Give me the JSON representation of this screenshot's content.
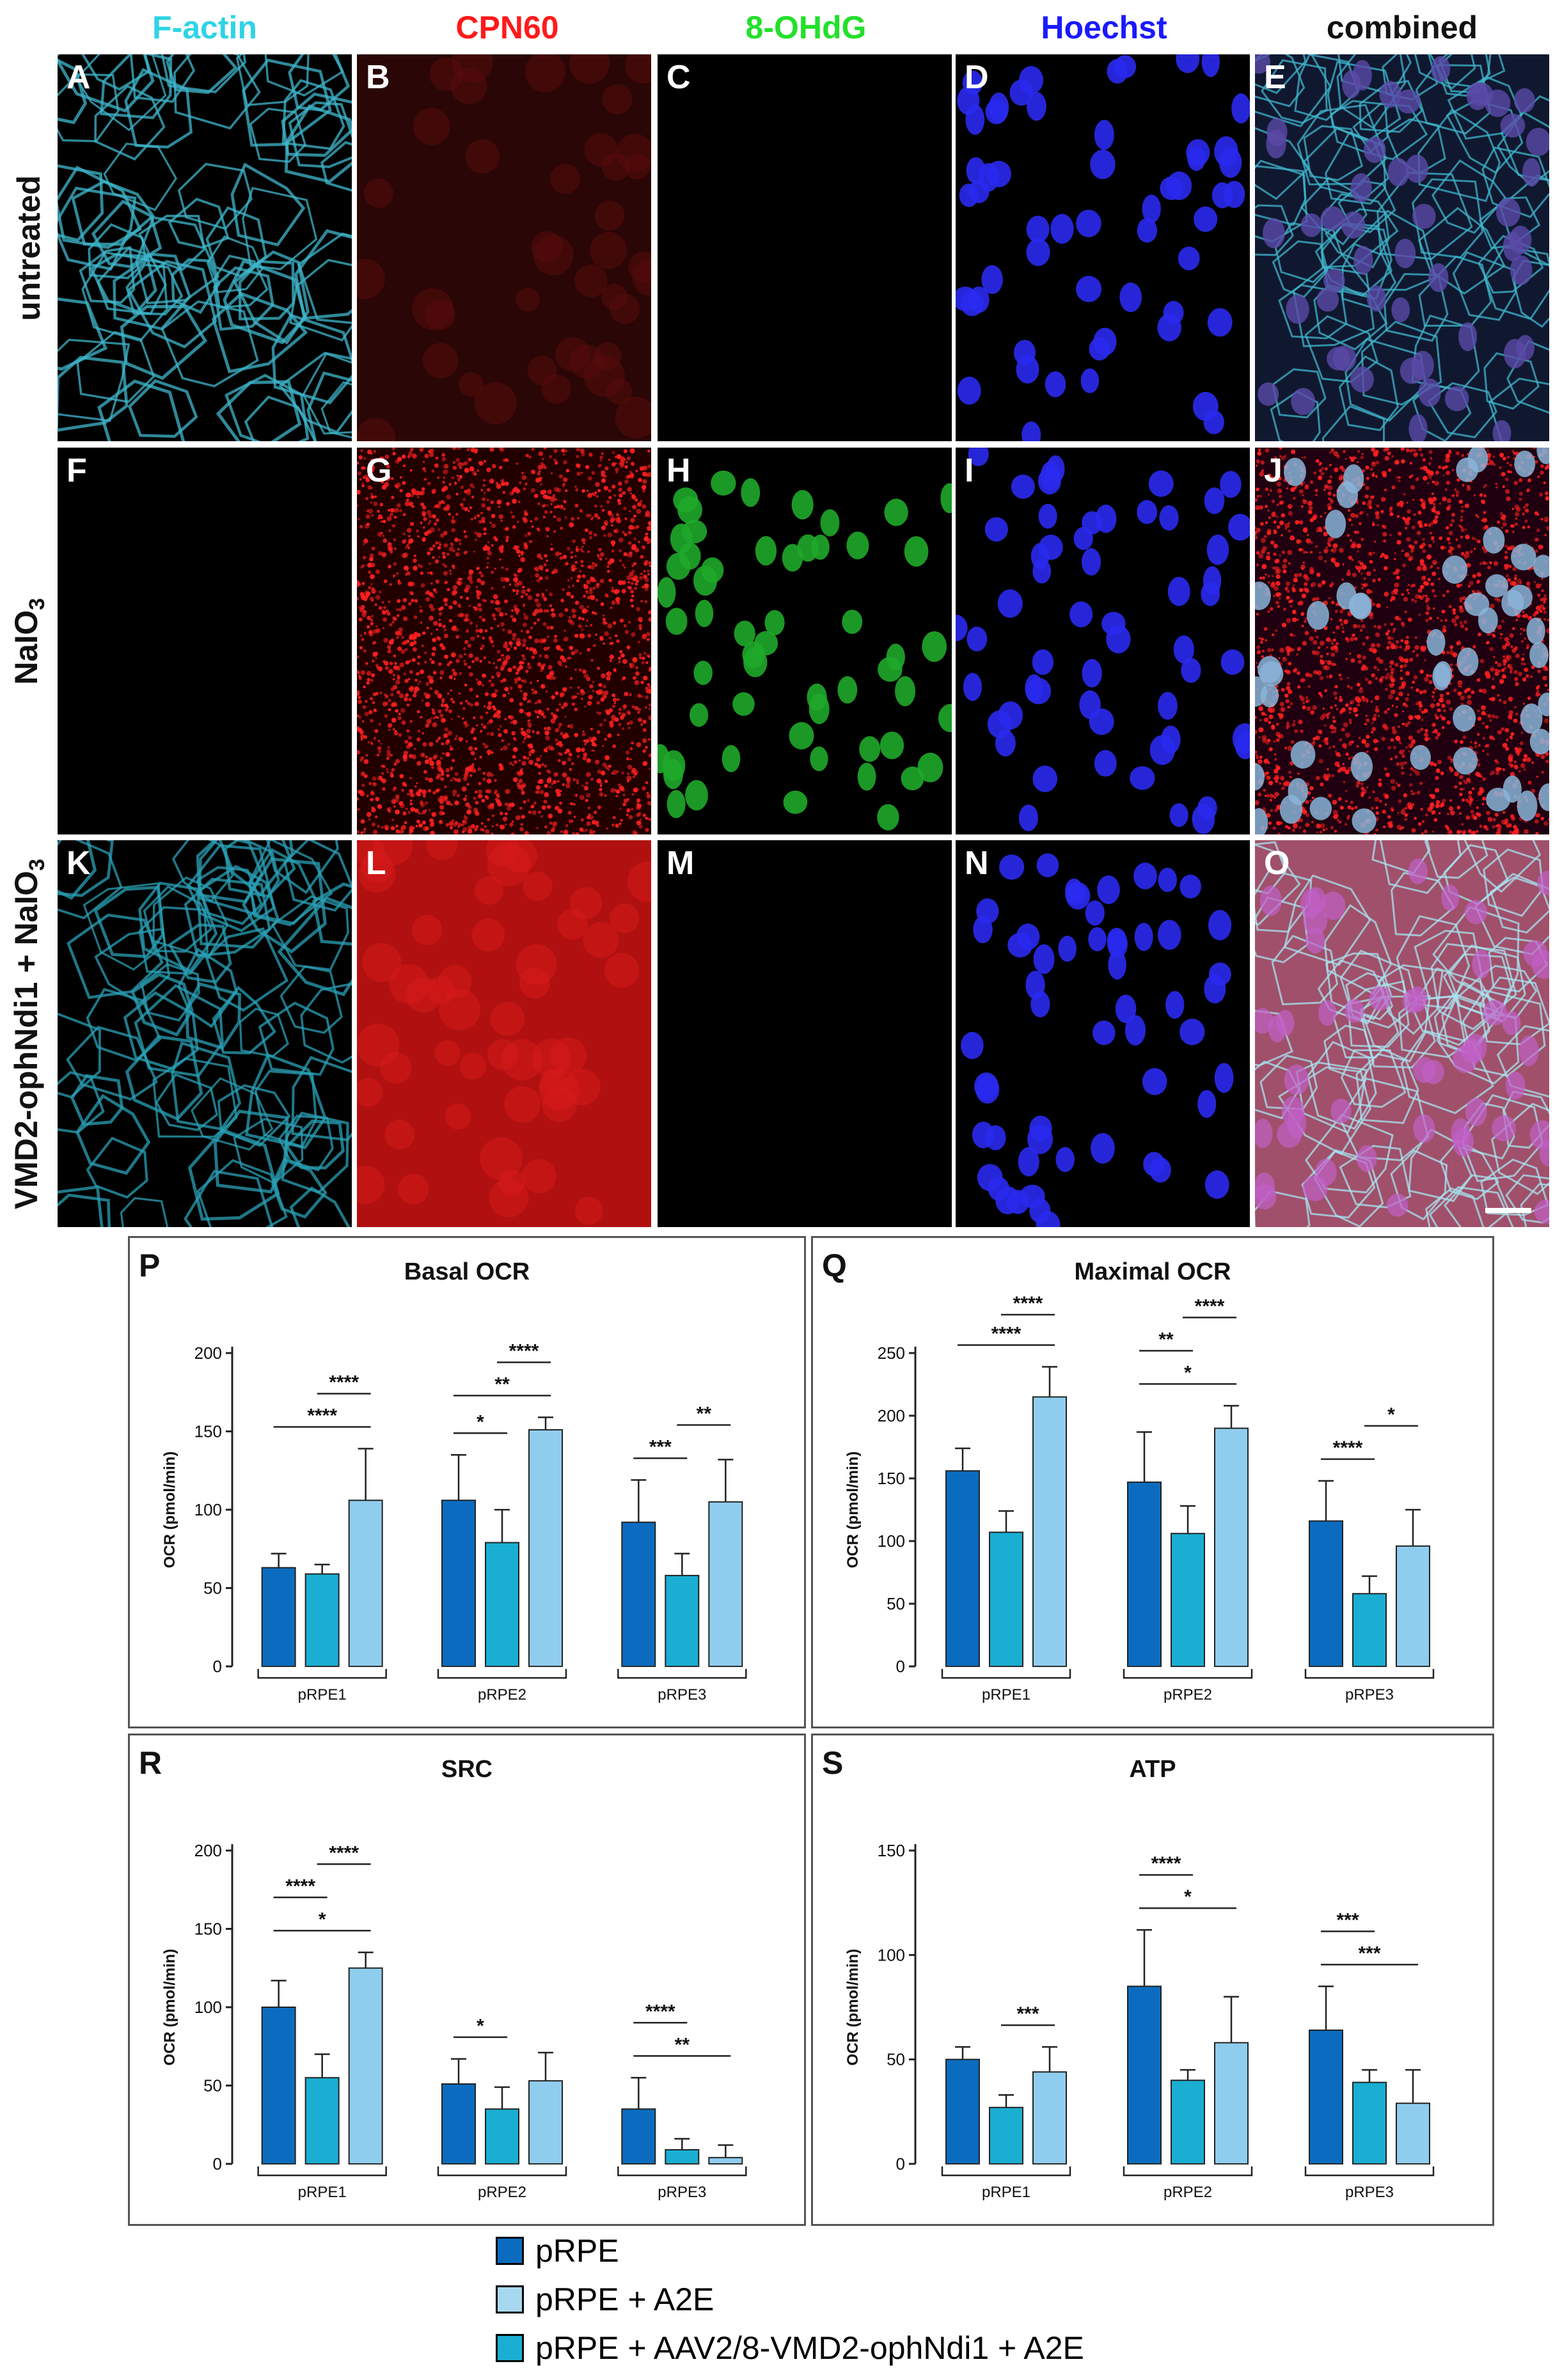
{
  "columns": [
    {
      "label": "F-actin",
      "color": "#2fd3e6"
    },
    {
      "label": "CPN60",
      "color": "#ff1a1a"
    },
    {
      "label": "8-OHdG",
      "color": "#22e02a"
    },
    {
      "label": "Hoechst",
      "color": "#1a1aff"
    },
    {
      "label": "combined",
      "color": "#111111"
    }
  ],
  "rows": [
    {
      "label": "untreated"
    },
    {
      "label_main": "NaIO",
      "label_sub": "3"
    },
    {
      "label_main": "VMD2-ophNdi1 + NaIO",
      "label_sub": "3"
    }
  ],
  "panels": [
    "A",
    "B",
    "C",
    "D",
    "E",
    "F",
    "G",
    "H",
    "I",
    "J",
    "K",
    "L",
    "M",
    "N",
    "O"
  ],
  "chart_data": [
    {
      "panel": "P",
      "type": "bar",
      "title": "Basal OCR",
      "ylabel": "OCR (pmol/min)",
      "ylim": [
        0,
        200
      ],
      "yticks": [
        0,
        50,
        100,
        150,
        200
      ],
      "categories": [
        "pRPE1",
        "pRPE2",
        "pRPE3"
      ],
      "values": [
        [
          63,
          59,
          106
        ],
        [
          106,
          79,
          151
        ],
        [
          92,
          58,
          105
        ]
      ],
      "errors": [
        [
          9,
          6,
          33
        ],
        [
          29,
          21,
          8
        ],
        [
          27,
          14,
          27
        ]
      ],
      "significance": [
        {
          "group": 0,
          "from": 0,
          "to": 2,
          "label": "****"
        },
        {
          "group": 0,
          "from": 1,
          "to": 2,
          "label": "****"
        },
        {
          "group": 1,
          "from": 0,
          "to": 2,
          "label": "**"
        },
        {
          "group": 1,
          "from": 0,
          "to": 1,
          "label": "*"
        },
        {
          "group": 1,
          "from": 1,
          "to": 2,
          "label": "****"
        },
        {
          "group": 2,
          "from": 0,
          "to": 1,
          "label": "***"
        },
        {
          "group": 2,
          "from": 1,
          "to": 2,
          "label": "**"
        }
      ]
    },
    {
      "panel": "Q",
      "type": "bar",
      "title": "Maximal OCR",
      "ylabel": "OCR (pmol/min)",
      "ylim": [
        0,
        250
      ],
      "yticks": [
        0,
        50,
        100,
        150,
        200,
        250
      ],
      "categories": [
        "pRPE1",
        "pRPE2",
        "pRPE3"
      ],
      "values": [
        [
          156,
          107,
          215
        ],
        [
          147,
          106,
          190
        ],
        [
          116,
          58,
          96
        ]
      ],
      "errors": [
        [
          18,
          17,
          24
        ],
        [
          40,
          22,
          18
        ],
        [
          32,
          14,
          29
        ]
      ],
      "significance": [
        {
          "group": 0,
          "from": 0,
          "to": 2,
          "label": "****"
        },
        {
          "group": 0,
          "from": 1,
          "to": 2,
          "label": "****"
        },
        {
          "group": 1,
          "from": 0,
          "to": 2,
          "label": "*"
        },
        {
          "group": 1,
          "from": 0,
          "to": 1,
          "label": "**"
        },
        {
          "group": 1,
          "from": 1,
          "to": 2,
          "label": "****"
        },
        {
          "group": 2,
          "from": 0,
          "to": 1,
          "label": "****"
        },
        {
          "group": 2,
          "from": 1,
          "to": 2,
          "label": "*"
        }
      ]
    },
    {
      "panel": "R",
      "type": "bar",
      "title": "SRC",
      "ylabel": "OCR (pmol/min)",
      "ylim": [
        0,
        200
      ],
      "yticks": [
        0,
        50,
        100,
        150,
        200
      ],
      "categories": [
        "pRPE1",
        "pRPE2",
        "pRPE3"
      ],
      "values": [
        [
          100,
          55,
          125
        ],
        [
          51,
          35,
          53
        ],
        [
          35,
          9,
          4
        ]
      ],
      "errors": [
        [
          17,
          15,
          10
        ],
        [
          16,
          14,
          18
        ],
        [
          20,
          7,
          8
        ]
      ],
      "significance": [
        {
          "group": 0,
          "from": 0,
          "to": 2,
          "label": "*"
        },
        {
          "group": 0,
          "from": 0,
          "to": 1,
          "label": "****"
        },
        {
          "group": 0,
          "from": 1,
          "to": 2,
          "label": "****"
        },
        {
          "group": 1,
          "from": 0,
          "to": 1,
          "label": "*"
        },
        {
          "group": 2,
          "from": 0,
          "to": 2,
          "label": "**"
        },
        {
          "group": 2,
          "from": 0,
          "to": 1,
          "label": "****"
        }
      ]
    },
    {
      "panel": "S",
      "type": "bar",
      "title": "ATP",
      "ylabel": "OCR (pmol/min)",
      "ylim": [
        0,
        150
      ],
      "yticks": [
        0,
        50,
        100,
        150
      ],
      "categories": [
        "pRPE1",
        "pRPE2",
        "pRPE3"
      ],
      "values": [
        [
          50,
          27,
          44
        ],
        [
          85,
          40,
          58
        ],
        [
          64,
          39,
          29
        ]
      ],
      "errors": [
        [
          6,
          6,
          12
        ],
        [
          27,
          5,
          22
        ],
        [
          21,
          6,
          16
        ]
      ],
      "significance": [
        {
          "group": 0,
          "from": 1,
          "to": 2,
          "label": "***"
        },
        {
          "group": 1,
          "from": 0,
          "to": 2,
          "label": "*"
        },
        {
          "group": 1,
          "from": 0,
          "to": 1,
          "label": "****"
        },
        {
          "group": 2,
          "from": 0,
          "to": 2,
          "label": "***"
        },
        {
          "group": 2,
          "from": 0,
          "to": 1,
          "label": "***"
        }
      ]
    }
  ],
  "bar_colors": [
    "#0b6cbf",
    "#1aaed2",
    "#8fcdee"
  ],
  "legend": [
    {
      "label": "pRPE",
      "color": "#0b6cbf"
    },
    {
      "label": "pRPE + A2E",
      "color": "#a8d8f0"
    },
    {
      "label": "pRPE + AAV2/8-VMD2-ophNdi1 + A2E",
      "color": "#1aaed2"
    }
  ]
}
